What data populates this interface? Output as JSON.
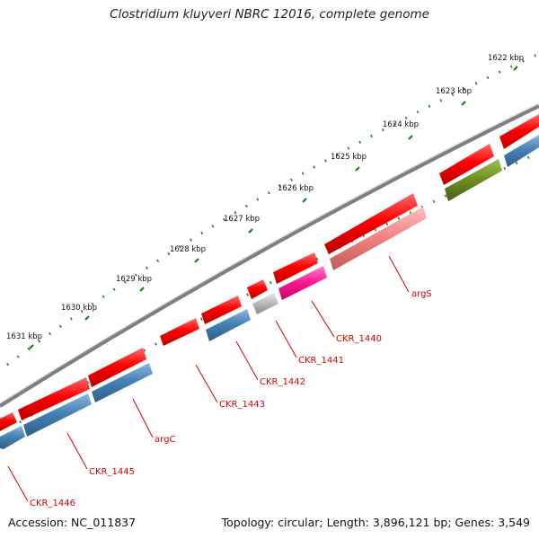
{
  "title": "Clostridium kluyveri NBRC 12016, complete genome",
  "footer": {
    "accession": "Accession: NC_011837",
    "summary": "Topology: circular; Length: 3,896,121 bp; Genes: 3,549"
  },
  "colors": {
    "backbone": "#7f7f7f",
    "forward_gene": "#ff0000",
    "reverse_gene": "#4682b4",
    "trna": "#808080",
    "pink_gene": "#ff1493",
    "salmon_gene": "#f08080",
    "green_gene": "#6b8e23",
    "scale_ticks": "#1a7a1a",
    "label_line": "#d40000"
  },
  "scale_labels": [
    "1622 kbp",
    "1623 kbp",
    "1624 kbp",
    "1625 kbp",
    "1626 kbp",
    "1627 kbp",
    "1628 kbp",
    "1629 kbp",
    "1630 kbp",
    "1631 kbp"
  ],
  "gene_labels": [
    "argS",
    "CKR_1440",
    "CKR_1441",
    "CKR_1442",
    "CKR_1443",
    "argC",
    "CKR_1445",
    "CKR_1446"
  ]
}
